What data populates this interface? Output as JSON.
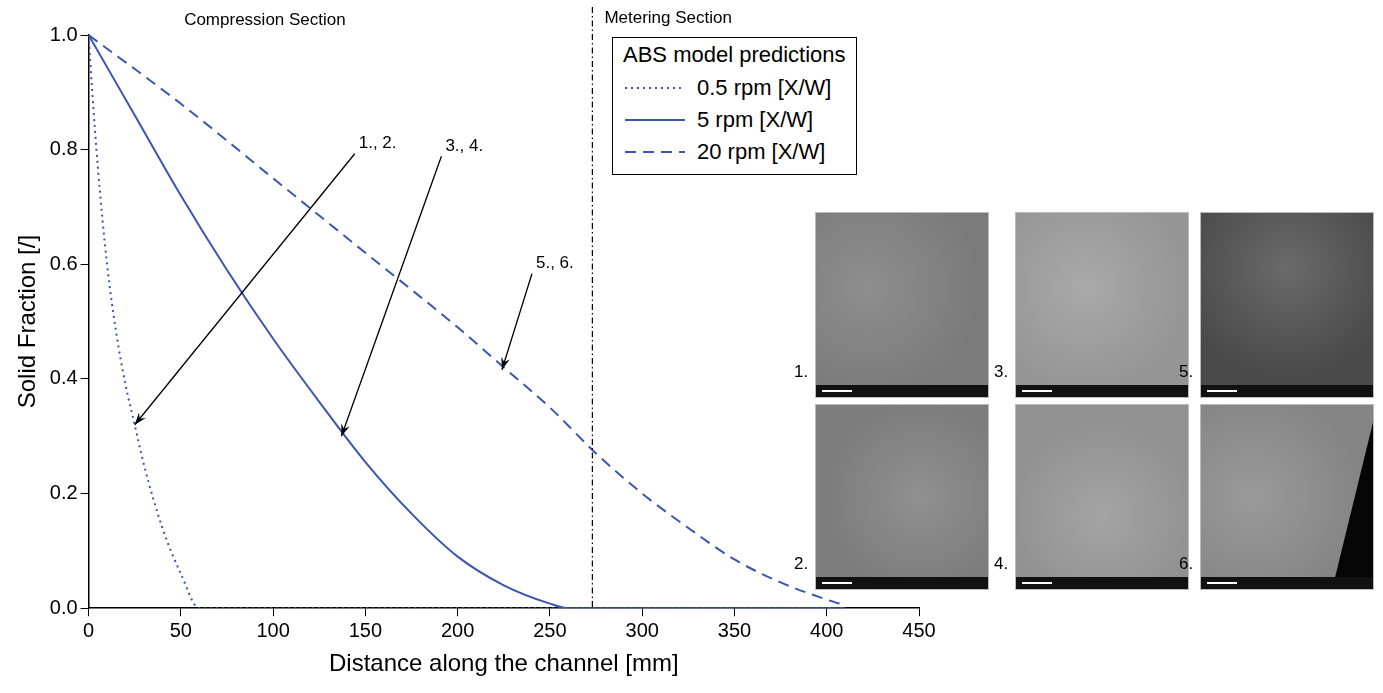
{
  "chart_data": {
    "type": "line",
    "xlabel": "Distance along the channel [mm]",
    "ylabel": "Solid Fraction [/]",
    "xlim": [
      0,
      450
    ],
    "xticks": [
      0,
      50,
      100,
      150,
      200,
      250,
      300,
      350,
      400,
      450
    ],
    "ylim": [
      0,
      1
    ],
    "yticks": [
      {
        "value": 0,
        "label": "0.0"
      },
      0.2,
      0.4,
      0.6,
      0.8,
      {
        "value": 1,
        "label": "1.0"
      }
    ],
    "grid": false,
    "legend": "upper right",
    "legend_title": "ABS model predictions",
    "series": [
      {
        "name": "0.5 rpm [X/W]",
        "color": "#3b55b2",
        "line_style": "dotted",
        "x": [
          0,
          2,
          5,
          10,
          15,
          20,
          25,
          30,
          40,
          50,
          60,
          70,
          100,
          200,
          300,
          410
        ],
        "values": [
          1.0,
          0.9,
          0.77,
          0.6,
          0.48,
          0.39,
          0.32,
          0.25,
          0.14,
          0.06,
          0.0,
          0,
          0,
          0,
          0,
          0
        ]
      },
      {
        "name": "5 rpm [X/W]",
        "color": "#3b55b2",
        "line_style": "solid",
        "x": [
          0,
          25,
          50,
          75,
          100,
          125,
          150,
          175,
          200,
          225,
          250,
          260,
          300,
          350,
          410
        ],
        "values": [
          1.0,
          0.86,
          0.72,
          0.59,
          0.47,
          0.36,
          0.255,
          0.165,
          0.09,
          0.04,
          0.008,
          0,
          0,
          0,
          0
        ]
      },
      {
        "name": "20 rpm [X/W]",
        "color": "#3b55b2",
        "line_style": "dashed",
        "x": [
          0,
          50,
          100,
          150,
          200,
          225,
          250,
          275,
          300,
          325,
          350,
          375,
          400,
          410
        ],
        "values": [
          1.0,
          0.88,
          0.75,
          0.62,
          0.49,
          0.42,
          0.35,
          0.27,
          0.2,
          0.14,
          0.085,
          0.045,
          0.015,
          0.005
        ]
      }
    ],
    "sections": [
      "Compression Section",
      "Metering Section"
    ],
    "section_boundary": 273,
    "annotations": [
      {
        "text": "1., 2.",
        "x": 25,
        "y": 0.32
      },
      {
        "text": "3., 4.",
        "x": 137,
        "y": 0.3
      },
      {
        "text": "5., 6.",
        "x": 224,
        "y": 0.416
      }
    ],
    "micrographs": [
      "1.",
      "2.",
      "3.",
      "4.",
      "5.",
      "6."
    ]
  }
}
